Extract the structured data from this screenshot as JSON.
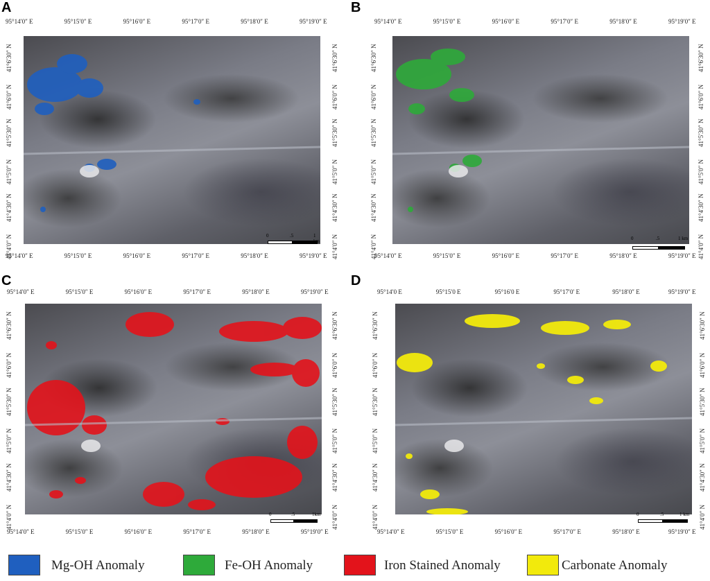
{
  "panels": [
    {
      "letter": "A",
      "anomaly_color": "#1f5fbf",
      "lon_top": [
        "95°14′0″ E",
        "95°15′0″ E",
        "95°16′0″ E",
        "95°17′0″ E",
        "95°18′0″ E",
        "95°19′0″ E"
      ],
      "lon_bottom": [
        "95°14′0″ E",
        "95°15′0″ E",
        "95°16′0″ E",
        "95°17′0″ E",
        "95°18′0″ E",
        "95°19′0″ E"
      ],
      "lat_left": [
        "41°6′30″ N",
        "41°6′0″ N",
        "41°5′30″ N",
        "41°5′0″ N",
        "41°4′30″ N",
        "41°4′0″ N"
      ],
      "lat_right": [
        "41°6′30″ N",
        "41°6′0″ N",
        "41°5′30″ N",
        "41°5′0″ N",
        "41°4′30″ N",
        "41°4′0″ N"
      ],
      "scale": {
        "t0": "0",
        "t1": ".5",
        "t2": "1 km"
      }
    },
    {
      "letter": "B",
      "anomaly_color": "#2eaa3a",
      "lon_top": [
        "95°14′0″ E",
        "95°15′0″ E",
        "95°16′0″ E",
        "95°17′0″ E",
        "95°18′0″ E",
        "95°19′0″ E"
      ],
      "lon_bottom": [
        "95°14′0″ E",
        "95°15′0″ E",
        "95°16′0″ E",
        "95°17′0″ E",
        "95°18′0″ E",
        "95°19′0″ E"
      ],
      "lat_left": [
        "41°6′30″ N",
        "41°6′0″ N",
        "41°5′30″ N",
        "41°5′0″ N",
        "41°4′30″ N",
        "41°4′0″ N"
      ],
      "lat_right": [
        "41°6′30″ N",
        "41°6′0″ N",
        "41°5′30″ N",
        "41°5′0″ N",
        "41°4′30″ N",
        "41°4′0″ N"
      ],
      "scale": {
        "t0": "0",
        "t1": ".5",
        "t2": "1 km"
      }
    },
    {
      "letter": "C",
      "anomaly_color": "#e3131b",
      "lon_top": [
        "95°14′0″ E",
        "95°15′0″ E",
        "95°16′0″ E",
        "95°17′0″ E",
        "95°18′0″ E",
        "95°19′0″ E"
      ],
      "lon_bottom": [
        "95°14′0″ E",
        "95°15′0″ E",
        "95°16′0″ E",
        "95°17′0″ E",
        "95°18′0″ E",
        "95°19′0″ E"
      ],
      "lat_left": [
        "41°6′30″ N",
        "41°6′0″ N",
        "41°5′30″ N",
        "41°5′0″ N",
        "41°4′30″ N",
        "41°4′0″ N"
      ],
      "lat_right": [
        "41°6′30″ N",
        "41°6′0″ N",
        "41°5′30″ N",
        "41°5′0″ N",
        "41°4′30″ N",
        "41°4′0″ N"
      ],
      "scale": {
        "t0": "0",
        "t1": ".5",
        "t2": "1km"
      }
    },
    {
      "letter": "D",
      "anomaly_color": "#f2ea0c",
      "lon_top": [
        "95°14′0 E",
        "95°15′0 E",
        "95°16′0 E",
        "95°17′0′ E",
        "95°18′0″ E",
        "95°19′0″ E"
      ],
      "lon_bottom": [
        "95°14′0″ E",
        "95°15′0″ E",
        "95°16′0″ E",
        "95°17′0″ E",
        "95°18′0″ E",
        "95°19′0″ E"
      ],
      "lat_left": [
        "41°6′30″ N",
        "41°6′0″ N",
        "41°5′30″ N",
        "41°5′0″ N",
        "41°4′30″ N",
        "41°4′0″ N"
      ],
      "lat_right": [
        "41°6′30″ N",
        "41°6′0″ N",
        "41°5′30″ N",
        "41°5′0″ N",
        "41°4′30″ N",
        "41°4′0″ N"
      ],
      "scale": {
        "t0": "0",
        "t1": ".5",
        "t2": "1 km"
      }
    }
  ],
  "legend": [
    {
      "label": "Mg-OH Anomaly",
      "color": "#1f5fbf"
    },
    {
      "label": "Fe-OH Anomaly",
      "color": "#2eaa3a"
    },
    {
      "label": "Iron Stained Anomaly",
      "color": "#e3131b"
    },
    {
      "label": "Carbonate Anomaly",
      "color": "#f2ea0c"
    }
  ]
}
